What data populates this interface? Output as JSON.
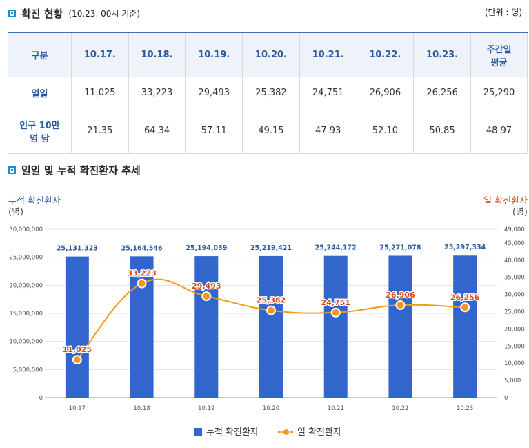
{
  "section1": {
    "title": "확진 현황",
    "subtitle": "(10.23. 00시 기준)",
    "unit": "(단위 : 명)"
  },
  "table": {
    "header": [
      "구분",
      "10.17.",
      "10.18.",
      "10.19.",
      "10.20.",
      "10.21.",
      "10.22.",
      "10.23.",
      "주간일\n평균"
    ],
    "rows": [
      [
        "일일",
        "11,025",
        "33,223",
        "29,493",
        "25,382",
        "24,751",
        "26,906",
        "26,256",
        "25,290"
      ],
      [
        "인구 10만\n명 당",
        "21.35",
        "64.34",
        "57.11",
        "49.15",
        "47.93",
        "52.10",
        "50.85",
        "48.97"
      ]
    ]
  },
  "section2": {
    "title": "일일 및 누적 확진환자 추세"
  },
  "colors": {
    "bar": "#3366cc",
    "line": "#f39a1a",
    "left_axis_label": "#2b5aa0",
    "right_axis_label": "#d9481a",
    "data_label_line": "#d9481a"
  },
  "chart_data": {
    "type": "bar+line",
    "categories": [
      "10.17",
      "10.18",
      "10.19",
      "10.20",
      "10.21",
      "10.22",
      "10.23"
    ],
    "y_left_label": "누적 확진환자",
    "y_left_unit": "(명)",
    "y_right_label": "일 확진환자",
    "y_right_unit": "(명)",
    "y_left_range": [
      0,
      30000000
    ],
    "y_left_ticks": [
      "0",
      "5,000,000",
      "10,000,000",
      "15,000,000",
      "20,000,000",
      "25,000,000",
      "30,000,000"
    ],
    "y_right_range": [
      0,
      49000
    ],
    "y_right_ticks": [
      "0",
      "5,000",
      "10,000",
      "15,000",
      "20,000",
      "25,000",
      "30,000",
      "35,000",
      "40,000",
      "45,000",
      "49,000"
    ],
    "series": [
      {
        "name": "누적 확진환자",
        "kind": "bar",
        "axis": "left",
        "values": [
          25131323,
          25164546,
          25194039,
          25219421,
          25244172,
          25271078,
          25297334
        ],
        "labels": [
          "25,131,323",
          "25,164,546",
          "25,194,039",
          "25,219,421",
          "25,244,172",
          "25,271,078",
          "25,297,334"
        ]
      },
      {
        "name": "일 확진환자",
        "kind": "line",
        "axis": "right",
        "values": [
          11025,
          33223,
          29493,
          25382,
          24751,
          26906,
          26256
        ],
        "labels": [
          "11,025",
          "33,223",
          "29,493",
          "25,382",
          "24,751",
          "26,906",
          "26,256"
        ]
      }
    ],
    "legend_position": "bottom-center",
    "grid": true
  }
}
